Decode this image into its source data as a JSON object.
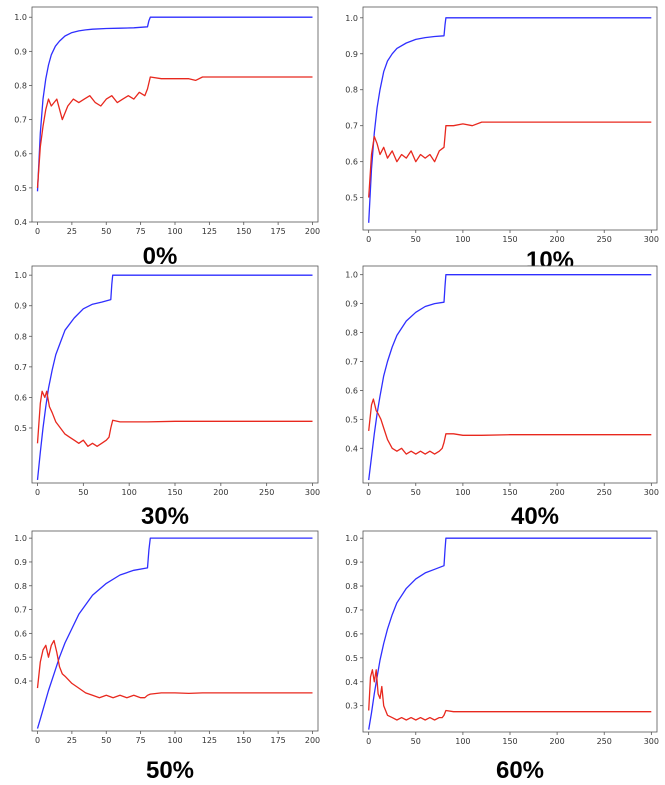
{
  "colors": {
    "train": "#2f2fff",
    "test": "#e8281e",
    "axis": "#555555",
    "background": "#ffffff"
  },
  "chart_data": [
    {
      "type": "line",
      "caption": "0%",
      "xlim": [
        -4,
        204
      ],
      "ylim": [
        0.4,
        1.03
      ],
      "xticks": [
        0,
        25,
        50,
        75,
        100,
        125,
        150,
        175,
        200
      ],
      "xtick_labels": [
        "0",
        "25",
        "50",
        "75",
        "100",
        "125",
        "150",
        "175",
        "200"
      ],
      "yticks": [
        0.4,
        0.5,
        0.6,
        0.7,
        0.8,
        0.9,
        1.0
      ],
      "ytick_labels": [
        "0.4",
        "0.5",
        "0.6",
        "0.7",
        "0.8",
        "0.9",
        "1.0"
      ],
      "series": [
        {
          "color": "blue",
          "x": [
            0,
            2,
            4,
            6,
            8,
            10,
            13,
            16,
            20,
            25,
            30,
            35,
            40,
            50,
            60,
            70,
            80,
            81,
            82,
            200
          ],
          "y": [
            0.49,
            0.66,
            0.76,
            0.82,
            0.86,
            0.89,
            0.915,
            0.93,
            0.945,
            0.955,
            0.96,
            0.963,
            0.965,
            0.967,
            0.968,
            0.969,
            0.972,
            0.99,
            1.0,
            1.0
          ]
        },
        {
          "color": "red",
          "x": [
            0,
            2,
            4,
            6,
            8,
            10,
            14,
            18,
            22,
            26,
            30,
            34,
            38,
            42,
            46,
            50,
            54,
            58,
            62,
            66,
            70,
            74,
            78,
            80,
            82,
            90,
            100,
            110,
            115,
            120,
            130,
            150,
            175,
            200
          ],
          "y": [
            0.5,
            0.62,
            0.68,
            0.73,
            0.76,
            0.74,
            0.76,
            0.7,
            0.74,
            0.76,
            0.75,
            0.76,
            0.77,
            0.75,
            0.74,
            0.76,
            0.77,
            0.75,
            0.76,
            0.77,
            0.76,
            0.78,
            0.77,
            0.79,
            0.825,
            0.82,
            0.82,
            0.82,
            0.815,
            0.825,
            0.825,
            0.825,
            0.825,
            0.825
          ]
        }
      ]
    },
    {
      "type": "line",
      "caption": "10%",
      "xlim": [
        -6,
        306
      ],
      "ylim": [
        0.41,
        1.03
      ],
      "xticks": [
        0,
        50,
        100,
        150,
        200,
        250,
        300
      ],
      "xtick_labels": [
        "0",
        "50",
        "100",
        "150",
        "200",
        "250",
        "300"
      ],
      "yticks": [
        0.5,
        0.6,
        0.7,
        0.8,
        0.9,
        1.0
      ],
      "ytick_labels": [
        "0.5",
        "0.6",
        "0.7",
        "0.8",
        "0.9",
        "1.0"
      ],
      "series": [
        {
          "color": "blue",
          "x": [
            0,
            3,
            6,
            9,
            12,
            16,
            20,
            25,
            30,
            40,
            50,
            60,
            70,
            80,
            81,
            82,
            300
          ],
          "y": [
            0.43,
            0.58,
            0.68,
            0.75,
            0.8,
            0.85,
            0.88,
            0.9,
            0.915,
            0.93,
            0.94,
            0.945,
            0.948,
            0.95,
            0.98,
            1.0,
            1.0
          ]
        },
        {
          "color": "red",
          "x": [
            0,
            3,
            6,
            9,
            12,
            16,
            20,
            25,
            30,
            35,
            40,
            45,
            50,
            55,
            60,
            65,
            70,
            75,
            80,
            82,
            90,
            100,
            110,
            120,
            150,
            200,
            250,
            300
          ],
          "y": [
            0.5,
            0.62,
            0.67,
            0.65,
            0.62,
            0.64,
            0.61,
            0.63,
            0.6,
            0.62,
            0.61,
            0.63,
            0.6,
            0.62,
            0.61,
            0.62,
            0.6,
            0.63,
            0.64,
            0.7,
            0.7,
            0.705,
            0.7,
            0.71,
            0.71,
            0.71,
            0.71,
            0.71
          ]
        }
      ]
    },
    {
      "type": "line",
      "caption": "30%",
      "xlim": [
        -6,
        306
      ],
      "ylim": [
        0.32,
        1.03
      ],
      "xticks": [
        0,
        50,
        100,
        150,
        200,
        250,
        300
      ],
      "xtick_labels": [
        "0",
        "50",
        "100",
        "150",
        "200",
        "250",
        "300"
      ],
      "yticks": [
        0.5,
        0.6,
        0.7,
        0.8,
        0.9,
        1.0
      ],
      "ytick_labels": [
        "0.5",
        "0.6",
        "0.7",
        "0.8",
        "0.9",
        "1.0"
      ],
      "series": [
        {
          "color": "blue",
          "x": [
            0,
            3,
            6,
            9,
            12,
            16,
            20,
            25,
            30,
            40,
            50,
            60,
            70,
            80,
            81,
            82,
            300
          ],
          "y": [
            0.33,
            0.42,
            0.5,
            0.57,
            0.63,
            0.69,
            0.74,
            0.78,
            0.82,
            0.86,
            0.89,
            0.905,
            0.912,
            0.92,
            0.97,
            1.0,
            1.0
          ]
        },
        {
          "color": "red",
          "x": [
            0,
            3,
            5,
            8,
            10,
            13,
            16,
            20,
            25,
            30,
            35,
            40,
            45,
            50,
            55,
            60,
            65,
            70,
            75,
            78,
            80,
            82,
            90,
            100,
            110,
            120,
            150,
            200,
            250,
            300
          ],
          "y": [
            0.45,
            0.58,
            0.62,
            0.6,
            0.62,
            0.57,
            0.55,
            0.52,
            0.5,
            0.48,
            0.47,
            0.46,
            0.45,
            0.46,
            0.44,
            0.45,
            0.44,
            0.45,
            0.46,
            0.47,
            0.5,
            0.525,
            0.52,
            0.52,
            0.52,
            0.52,
            0.522,
            0.522,
            0.522,
            0.522
          ]
        }
      ]
    },
    {
      "type": "line",
      "caption": "40%",
      "xlim": [
        -6,
        306
      ],
      "ylim": [
        0.28,
        1.03
      ],
      "xticks": [
        0,
        50,
        100,
        150,
        200,
        250,
        300
      ],
      "xtick_labels": [
        "0",
        "50",
        "100",
        "150",
        "200",
        "250",
        "300"
      ],
      "yticks": [
        0.4,
        0.5,
        0.6,
        0.7,
        0.8,
        0.9,
        1.0
      ],
      "ytick_labels": [
        "0.4",
        "0.5",
        "0.6",
        "0.7",
        "0.8",
        "0.9",
        "1.0"
      ],
      "series": [
        {
          "color": "blue",
          "x": [
            0,
            3,
            6,
            9,
            12,
            16,
            20,
            25,
            30,
            40,
            50,
            60,
            70,
            80,
            81,
            82,
            300
          ],
          "y": [
            0.29,
            0.37,
            0.45,
            0.52,
            0.58,
            0.65,
            0.7,
            0.75,
            0.79,
            0.84,
            0.87,
            0.89,
            0.9,
            0.905,
            0.96,
            1.0,
            1.0
          ]
        },
        {
          "color": "red",
          "x": [
            0,
            3,
            5,
            8,
            10,
            13,
            16,
            20,
            25,
            30,
            35,
            40,
            45,
            50,
            55,
            60,
            65,
            70,
            75,
            78,
            80,
            82,
            90,
            100,
            110,
            120,
            150,
            200,
            250,
            300
          ],
          "y": [
            0.46,
            0.55,
            0.57,
            0.53,
            0.52,
            0.5,
            0.47,
            0.43,
            0.4,
            0.39,
            0.4,
            0.38,
            0.39,
            0.38,
            0.39,
            0.38,
            0.39,
            0.38,
            0.39,
            0.4,
            0.42,
            0.45,
            0.45,
            0.445,
            0.445,
            0.445,
            0.447,
            0.447,
            0.447,
            0.447
          ]
        }
      ]
    },
    {
      "type": "line",
      "caption": "50%",
      "xlim": [
        -4,
        204
      ],
      "ylim": [
        0.19,
        1.03
      ],
      "xticks": [
        0,
        25,
        50,
        75,
        100,
        125,
        150,
        175,
        200
      ],
      "xtick_labels": [
        "0",
        "25",
        "50",
        "75",
        "100",
        "125",
        "150",
        "175",
        "200"
      ],
      "yticks": [
        0.4,
        0.5,
        0.6,
        0.7,
        0.8,
        0.9,
        1.0
      ],
      "ytick_labels": [
        "0.4",
        "0.5",
        "0.6",
        "0.7",
        "0.8",
        "0.9",
        "1.0"
      ],
      "series": [
        {
          "color": "blue",
          "x": [
            0,
            2,
            5,
            8,
            12,
            16,
            20,
            25,
            30,
            40,
            50,
            60,
            70,
            80,
            81,
            82,
            200
          ],
          "y": [
            0.2,
            0.24,
            0.3,
            0.36,
            0.43,
            0.5,
            0.56,
            0.62,
            0.68,
            0.76,
            0.81,
            0.845,
            0.865,
            0.875,
            0.95,
            1.0,
            1.0
          ]
        },
        {
          "color": "red",
          "x": [
            0,
            2,
            4,
            6,
            8,
            10,
            12,
            14,
            16,
            18,
            20,
            25,
            30,
            35,
            40,
            45,
            50,
            55,
            60,
            65,
            70,
            75,
            78,
            80,
            82,
            90,
            100,
            110,
            120,
            150,
            175,
            200
          ],
          "y": [
            0.37,
            0.48,
            0.53,
            0.55,
            0.5,
            0.55,
            0.57,
            0.52,
            0.46,
            0.43,
            0.42,
            0.39,
            0.37,
            0.35,
            0.34,
            0.33,
            0.34,
            0.33,
            0.34,
            0.33,
            0.34,
            0.33,
            0.33,
            0.34,
            0.345,
            0.35,
            0.35,
            0.348,
            0.35,
            0.35,
            0.35,
            0.35
          ]
        }
      ]
    },
    {
      "type": "line",
      "caption": "60%",
      "xlim": [
        -6,
        306
      ],
      "ylim": [
        0.19,
        1.03
      ],
      "xticks": [
        0,
        50,
        100,
        150,
        200,
        250,
        300
      ],
      "xtick_labels": [
        "0",
        "50",
        "100",
        "150",
        "200",
        "250",
        "300"
      ],
      "yticks": [
        0.3,
        0.4,
        0.5,
        0.6,
        0.7,
        0.8,
        0.9,
        1.0
      ],
      "ytick_labels": [
        "0.3",
        "0.4",
        "0.5",
        "0.6",
        "0.7",
        "0.8",
        "0.9",
        "1.0"
      ],
      "series": [
        {
          "color": "blue",
          "x": [
            0,
            3,
            6,
            9,
            12,
            16,
            20,
            25,
            30,
            40,
            50,
            60,
            70,
            80,
            81,
            82,
            300
          ],
          "y": [
            0.2,
            0.27,
            0.35,
            0.42,
            0.49,
            0.56,
            0.62,
            0.68,
            0.73,
            0.79,
            0.83,
            0.855,
            0.87,
            0.885,
            0.95,
            1.0,
            1.0
          ]
        },
        {
          "color": "red",
          "x": [
            0,
            2,
            4,
            6,
            8,
            10,
            12,
            14,
            16,
            18,
            20,
            25,
            30,
            35,
            40,
            45,
            50,
            55,
            60,
            65,
            70,
            75,
            78,
            80,
            82,
            90,
            100,
            120,
            150,
            200,
            250,
            300
          ],
          "y": [
            0.28,
            0.42,
            0.45,
            0.4,
            0.45,
            0.35,
            0.33,
            0.38,
            0.3,
            0.28,
            0.26,
            0.25,
            0.24,
            0.25,
            0.24,
            0.25,
            0.24,
            0.25,
            0.24,
            0.25,
            0.24,
            0.25,
            0.25,
            0.26,
            0.28,
            0.275,
            0.275,
            0.275,
            0.275,
            0.275,
            0.275,
            0.275
          ]
        }
      ]
    }
  ]
}
